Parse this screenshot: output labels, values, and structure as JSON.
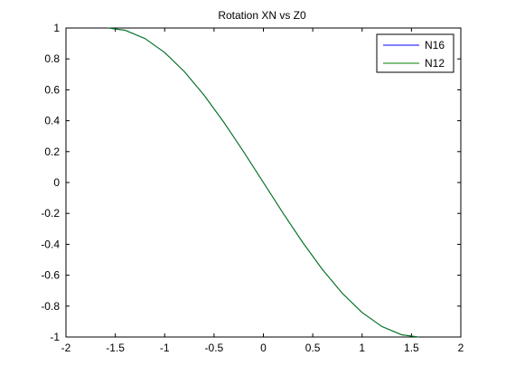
{
  "chart_data": {
    "type": "line",
    "title": "Rotation XN vs Z0",
    "xlabel": "",
    "ylabel": "",
    "xlim": [
      -2,
      2
    ],
    "ylim": [
      -1,
      1
    ],
    "x_ticks": [
      -2,
      -1.5,
      -1,
      -0.5,
      0,
      0.5,
      1,
      1.5,
      2
    ],
    "x_tick_labels": [
      "-2",
      "-1.5",
      "-1",
      "-0.5",
      "0",
      "0.5",
      "1",
      "1.5",
      "2"
    ],
    "y_ticks": [
      -1,
      -0.8,
      -0.6,
      -0.4,
      -0.2,
      0,
      0.2,
      0.4,
      0.6,
      0.8,
      1
    ],
    "y_tick_labels": [
      "-1",
      "-0.8",
      "-0.6",
      "-0.4",
      "-0.2",
      "0",
      "0.2",
      "0.4",
      "0.6",
      "0.8",
      "1"
    ],
    "grid": false,
    "legend_position": "top-right",
    "series": [
      {
        "name": "N16",
        "color": "#0000ff",
        "x": [
          -1.5708,
          -1.4,
          -1.2,
          -1.0,
          -0.8,
          -0.6,
          -0.4,
          -0.2,
          0.0,
          0.2,
          0.4,
          0.6,
          0.8,
          1.0,
          1.2,
          1.4,
          1.5708
        ],
        "y": [
          1.0,
          0.9854,
          0.932,
          0.8415,
          0.7174,
          0.5646,
          0.3894,
          0.1987,
          0.0,
          -0.1987,
          -0.3894,
          -0.5646,
          -0.7174,
          -0.8415,
          -0.932,
          -0.9854,
          -1.0
        ]
      },
      {
        "name": "N12",
        "color": "#008000",
        "x": [
          -1.5708,
          -1.4,
          -1.2,
          -1.0,
          -0.8,
          -0.6,
          -0.4,
          -0.2,
          0.0,
          0.2,
          0.4,
          0.6,
          0.8,
          1.0,
          1.2,
          1.4,
          1.5708
        ],
        "y": [
          1.0,
          0.9854,
          0.932,
          0.8415,
          0.7174,
          0.5646,
          0.3894,
          0.1987,
          0.0,
          -0.1987,
          -0.3894,
          -0.5646,
          -0.7174,
          -0.8415,
          -0.932,
          -0.9854,
          -1.0
        ]
      }
    ]
  }
}
